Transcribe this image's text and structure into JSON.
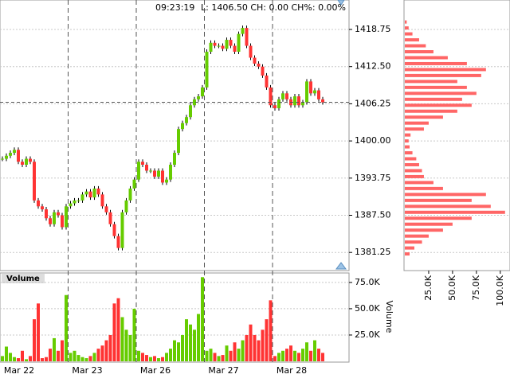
{
  "chart_data": {
    "type": "candlestick",
    "annotations": [
      "09:23:19",
      "L: 1406.50 CH: 0.00 CH%: 0.00%"
    ],
    "last": 1406.5,
    "up_color": "#66cc00",
    "down_color": "#ff3333",
    "ylim": [
      1378.2,
      1423.7
    ],
    "yticks": [
      {
        "value": 1381.25,
        "label": "1381.25"
      },
      {
        "value": 1387.5,
        "label": "1387.50"
      },
      {
        "value": 1393.75,
        "label": "1393.75"
      },
      {
        "value": 1400,
        "label": "1400.00"
      },
      {
        "value": 1406.25,
        "label": "1406.25"
      },
      {
        "value": 1412.5,
        "label": "1412.50"
      },
      {
        "value": 1418.75,
        "label": "1418.75"
      }
    ],
    "sessions": [
      {
        "label": "Mar 22",
        "close": [
          1397,
          1397.5,
          1398,
          1398.5,
          1396.5,
          1396,
          1397,
          1396.5,
          1390,
          1389,
          1388.5,
          1387,
          1386,
          1388,
          1387.5,
          1385.5,
          1389
        ],
        "volume": [
          5000,
          14000,
          8000,
          4000,
          3000,
          10000,
          2000,
          5000,
          40000,
          55000,
          3000,
          4000,
          12000,
          22000,
          10000,
          20000,
          63000
        ]
      },
      {
        "label": "Mar 23",
        "close": [
          1389.5,
          1390,
          1390,
          1391,
          1391.5,
          1390.5,
          1392,
          1391,
          1389,
          1388,
          1386,
          1384,
          1382,
          1388,
          1390,
          1392,
          1393.5
        ],
        "volume": [
          8000,
          10000,
          6000,
          4000,
          3000,
          5000,
          8000,
          12000,
          15000,
          20000,
          25000,
          55000,
          60000,
          42000,
          30000,
          25000,
          50000
        ]
      },
      {
        "label": "Mar 26",
        "close": [
          1396.5,
          1396,
          1395,
          1395,
          1394,
          1395,
          1393,
          1393.5,
          1396,
          1398,
          1402,
          1403,
          1404,
          1406,
          1407,
          1407.5,
          1409
        ],
        "volume": [
          10000,
          8000,
          6000,
          4000,
          5000,
          3000,
          4000,
          8000,
          12000,
          20000,
          18000,
          25000,
          40000,
          35000,
          30000,
          45000,
          80000
        ]
      },
      {
        "label": "Mar 27",
        "close": [
          1415,
          1416.5,
          1416,
          1416,
          1415.5,
          1417,
          1416,
          1415,
          1418,
          1419,
          1416,
          1414,
          1413,
          1412.5,
          1411,
          1409,
          1406
        ],
        "volume": [
          10000,
          12000,
          8000,
          5000,
          6000,
          15000,
          10000,
          18000,
          12000,
          20000,
          25000,
          35000,
          25000,
          20000,
          30000,
          40000,
          58000
        ]
      },
      {
        "label": "Mar 28",
        "close": [
          1405.5,
          1407,
          1408,
          1407,
          1406,
          1407.5,
          1406,
          1406.5,
          1410,
          1408,
          1408.5,
          1407,
          1406.5
        ],
        "volume": [
          5000,
          8000,
          10000,
          12000,
          15000,
          10000,
          8000,
          12000,
          18000,
          10000,
          20000,
          12000,
          8000
        ]
      }
    ],
    "volume_title": "Volume",
    "volume_ylim": [
      0,
      84000
    ],
    "volume_yticks": [
      {
        "value": 25000,
        "label": "25.0K"
      },
      {
        "value": 50000,
        "label": "50.0K"
      },
      {
        "value": 75000,
        "label": "75.0K"
      }
    ],
    "profile": {
      "color": "#ff6666",
      "levels": [
        1381,
        1382,
        1383,
        1384,
        1385,
        1386,
        1387,
        1388,
        1389,
        1390,
        1391,
        1392,
        1393,
        1394,
        1395,
        1396,
        1397,
        1398,
        1399,
        1400,
        1401,
        1402,
        1403,
        1404,
        1405,
        1406,
        1407,
        1408,
        1409,
        1410,
        1411,
        1412,
        1413,
        1414,
        1415,
        1416,
        1417,
        1418,
        1419,
        1420
      ],
      "values": [
        5000,
        10000,
        18000,
        25000,
        40000,
        50000,
        70000,
        105000,
        90000,
        70000,
        85000,
        40000,
        30000,
        20000,
        18000,
        15000,
        12000,
        8000,
        5000,
        4000,
        6000,
        20000,
        25000,
        40000,
        55000,
        70000,
        60000,
        75000,
        65000,
        55000,
        80000,
        85000,
        65000,
        45000,
        30000,
        22000,
        15000,
        8000,
        4000,
        2000
      ],
      "xlim": [
        0,
        106000
      ],
      "xticks": [
        {
          "value": 25000,
          "label": "25.0K"
        },
        {
          "value": 50000,
          "label": "50.0K"
        },
        {
          "value": 75000,
          "label": "75.0K"
        },
        {
          "value": 100000,
          "label": "100.0K"
        }
      ]
    }
  }
}
